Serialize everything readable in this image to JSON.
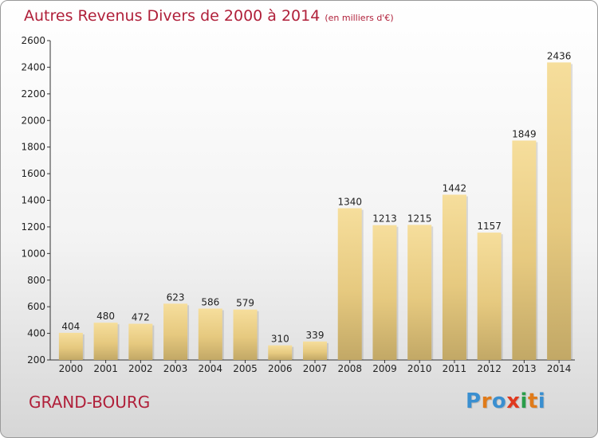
{
  "title": "Autres Revenus Divers de 2000 à 2014",
  "unit": "(en milliers d'€)",
  "town": "GRAND-BOURG",
  "logo": {
    "text": "Proxiti",
    "colors": [
      "#3a8fd0",
      "#e07b1a",
      "#3a8fd0",
      "#e0391f",
      "#2a9d4a",
      "#e07b1a",
      "#3a8fd0"
    ]
  },
  "chart_data": {
    "type": "bar",
    "title": "Autres Revenus Divers de 2000 à 2014",
    "categories": [
      "2000",
      "2001",
      "2002",
      "2003",
      "2004",
      "2005",
      "2006",
      "2007",
      "2008",
      "2009",
      "2010",
      "2011",
      "2012",
      "2013",
      "2014"
    ],
    "values": [
      404,
      480,
      472,
      623,
      586,
      579,
      310,
      339,
      1340,
      1213,
      1215,
      1442,
      1157,
      1849,
      2436
    ],
    "ylim": [
      200,
      2600
    ],
    "yticks": [
      "200",
      "400",
      "600",
      "800",
      "1000",
      "1200",
      "1400",
      "1600",
      "1800",
      "2000",
      "2200",
      "2400",
      "2600"
    ],
    "xlabel": "",
    "ylabel": "",
    "grid": false,
    "bar_color": "#f2d792"
  }
}
